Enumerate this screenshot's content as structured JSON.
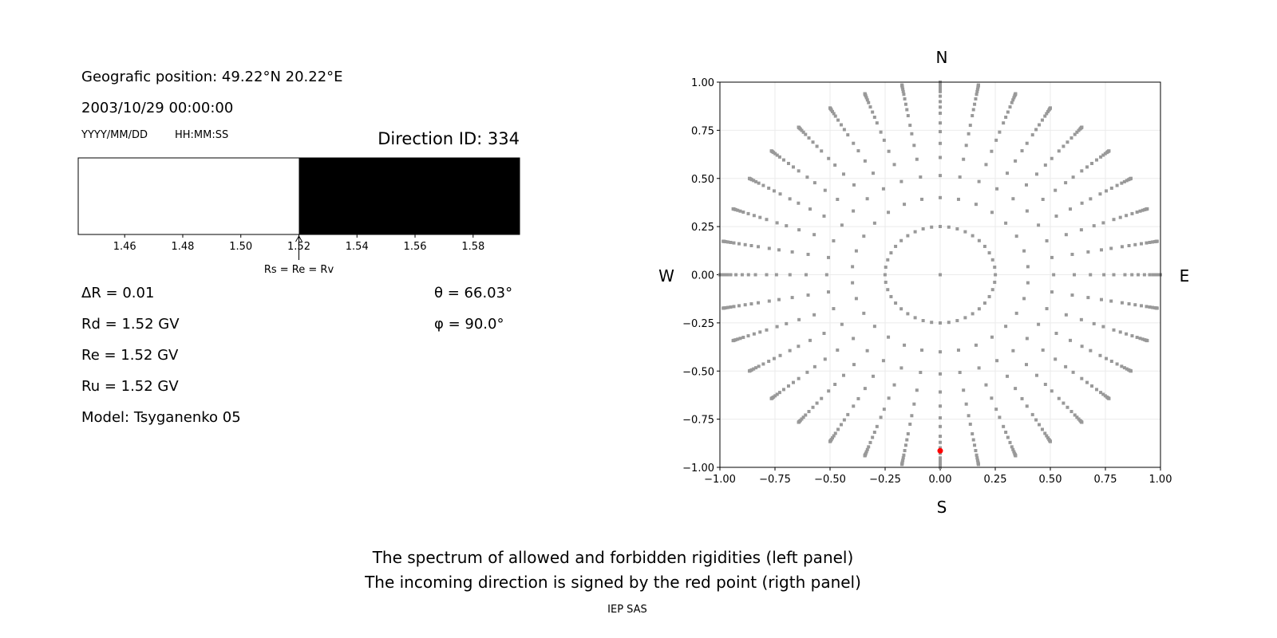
{
  "info": {
    "position": "Geografic position: 49.22°N 20.22°E",
    "datetime": "2003/10/29 00:00:00",
    "date_format": "YYYY/MM/DD",
    "time_format": "HH:MM:SS",
    "direction_id": "Direction ID: 334",
    "delta_r": "ΔR = 0.01",
    "rd": "Rd = 1.52 GV",
    "re": "Re = 1.52 GV",
    "ru": "Ru = 1.52 GV",
    "model": "Model: Tsyganenko 05",
    "theta": "θ = 66.03°",
    "phi": "φ = 90.0°"
  },
  "captions": {
    "line1": "The spectrum of allowed and forbidden rigidities (left panel)",
    "line2": "The incoming direction is signed by the red point (rigth panel)",
    "credit": "IEP SAS"
  },
  "chart_data": [
    {
      "type": "bar",
      "xlim": [
        1.444,
        1.596
      ],
      "xticks": [
        "1.46",
        "1.48",
        "1.50",
        "1.52",
        "1.54",
        "1.56",
        "1.58"
      ],
      "tick_values": [
        1.46,
        1.48,
        1.5,
        1.52,
        1.54,
        1.56,
        1.58
      ],
      "segments": [
        {
          "from": 1.444,
          "to": 1.52,
          "state": "allowed",
          "color": "#ffffff"
        },
        {
          "from": 1.52,
          "to": 1.596,
          "state": "forbidden",
          "color": "#000000"
        }
      ],
      "annotation": {
        "text": "Rs = Re = Rv",
        "x": 1.52
      }
    },
    {
      "type": "scatter",
      "xlim": [
        -1,
        1
      ],
      "ylim": [
        -1,
        1
      ],
      "xticks": [
        "−1.00",
        "−0.75",
        "−0.50",
        "−0.25",
        "0.00",
        "0.25",
        "0.50",
        "0.75",
        "1.00"
      ],
      "yticks": [
        "−1.00",
        "−0.75",
        "−0.50",
        "−0.25",
        "0.00",
        "0.25",
        "0.50",
        "0.75",
        "1.00"
      ],
      "tick_values": [
        -1,
        -0.75,
        -0.5,
        -0.25,
        0,
        0.25,
        0.5,
        0.75,
        1
      ],
      "grid": true,
      "compass": {
        "n": "N",
        "s": "S",
        "w": "W",
        "e": "E"
      },
      "point_color": "#999999",
      "highlight_color": "#ff0000",
      "direction_grid": [
        {
          "zenith": 0,
          "n_azimuth": 1
        },
        {
          "zenith": 14.5,
          "n_azimuth": 40
        },
        {
          "zenith": 23.6,
          "n_azimuth": 30
        },
        {
          "zenith": 31,
          "n_azimuth": 36
        },
        {
          "zenith": 37.5,
          "n_azimuth": 36
        },
        {
          "zenith": 43,
          "n_azimuth": 36
        },
        {
          "zenith": 48,
          "n_azimuth": 36
        },
        {
          "zenith": 52,
          "n_azimuth": 36
        },
        {
          "zenith": 57,
          "n_azimuth": 36
        },
        {
          "zenith": 60.5,
          "n_azimuth": 36
        },
        {
          "zenith": 64,
          "n_azimuth": 36
        },
        {
          "zenith": 68,
          "n_azimuth": 36
        },
        {
          "zenith": 72,
          "n_azimuth": 36
        },
        {
          "zenith": 75,
          "n_azimuth": 36
        },
        {
          "zenith": 78,
          "n_azimuth": 36
        },
        {
          "zenith": 81,
          "n_azimuth": 36
        },
        {
          "zenith": 83.5,
          "n_azimuth": 36
        },
        {
          "zenith": 86,
          "n_azimuth": 36
        },
        {
          "zenith": 88,
          "n_azimuth": 36
        },
        {
          "zenith": 90,
          "n_azimuth": 36
        }
      ],
      "highlight": {
        "x": 0.0,
        "y": -0.914
      }
    }
  ]
}
